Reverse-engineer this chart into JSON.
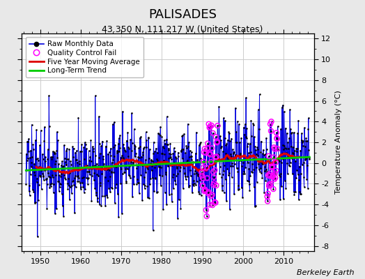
{
  "title": "PALISADES",
  "subtitle": "43.350 N, 111.217 W (United States)",
  "ylabel_right": "Temperature Anomaly (°C)",
  "watermark": "Berkeley Earth",
  "xlim": [
    1945.5,
    2017.5
  ],
  "ylim": [
    -8.5,
    12.5
  ],
  "yticks": [
    -8,
    -6,
    -4,
    -2,
    0,
    2,
    4,
    6,
    8,
    10,
    12
  ],
  "xticks": [
    1950,
    1960,
    1970,
    1980,
    1990,
    2000,
    2010
  ],
  "outer_bg": "#e8e8e8",
  "plot_bg": "#ffffff",
  "grid_color": "#cccccc",
  "raw_line_color": "#0000dd",
  "raw_dot_color": "#000000",
  "qc_color": "#ff00ff",
  "moving_avg_color": "#dd0000",
  "trend_color": "#00cc00",
  "legend_labels": [
    "Raw Monthly Data",
    "Quality Control Fail",
    "Five Year Moving Average",
    "Long-Term Trend"
  ],
  "title_fontsize": 13,
  "subtitle_fontsize": 9,
  "tick_fontsize": 8,
  "ylabel_fontsize": 8
}
